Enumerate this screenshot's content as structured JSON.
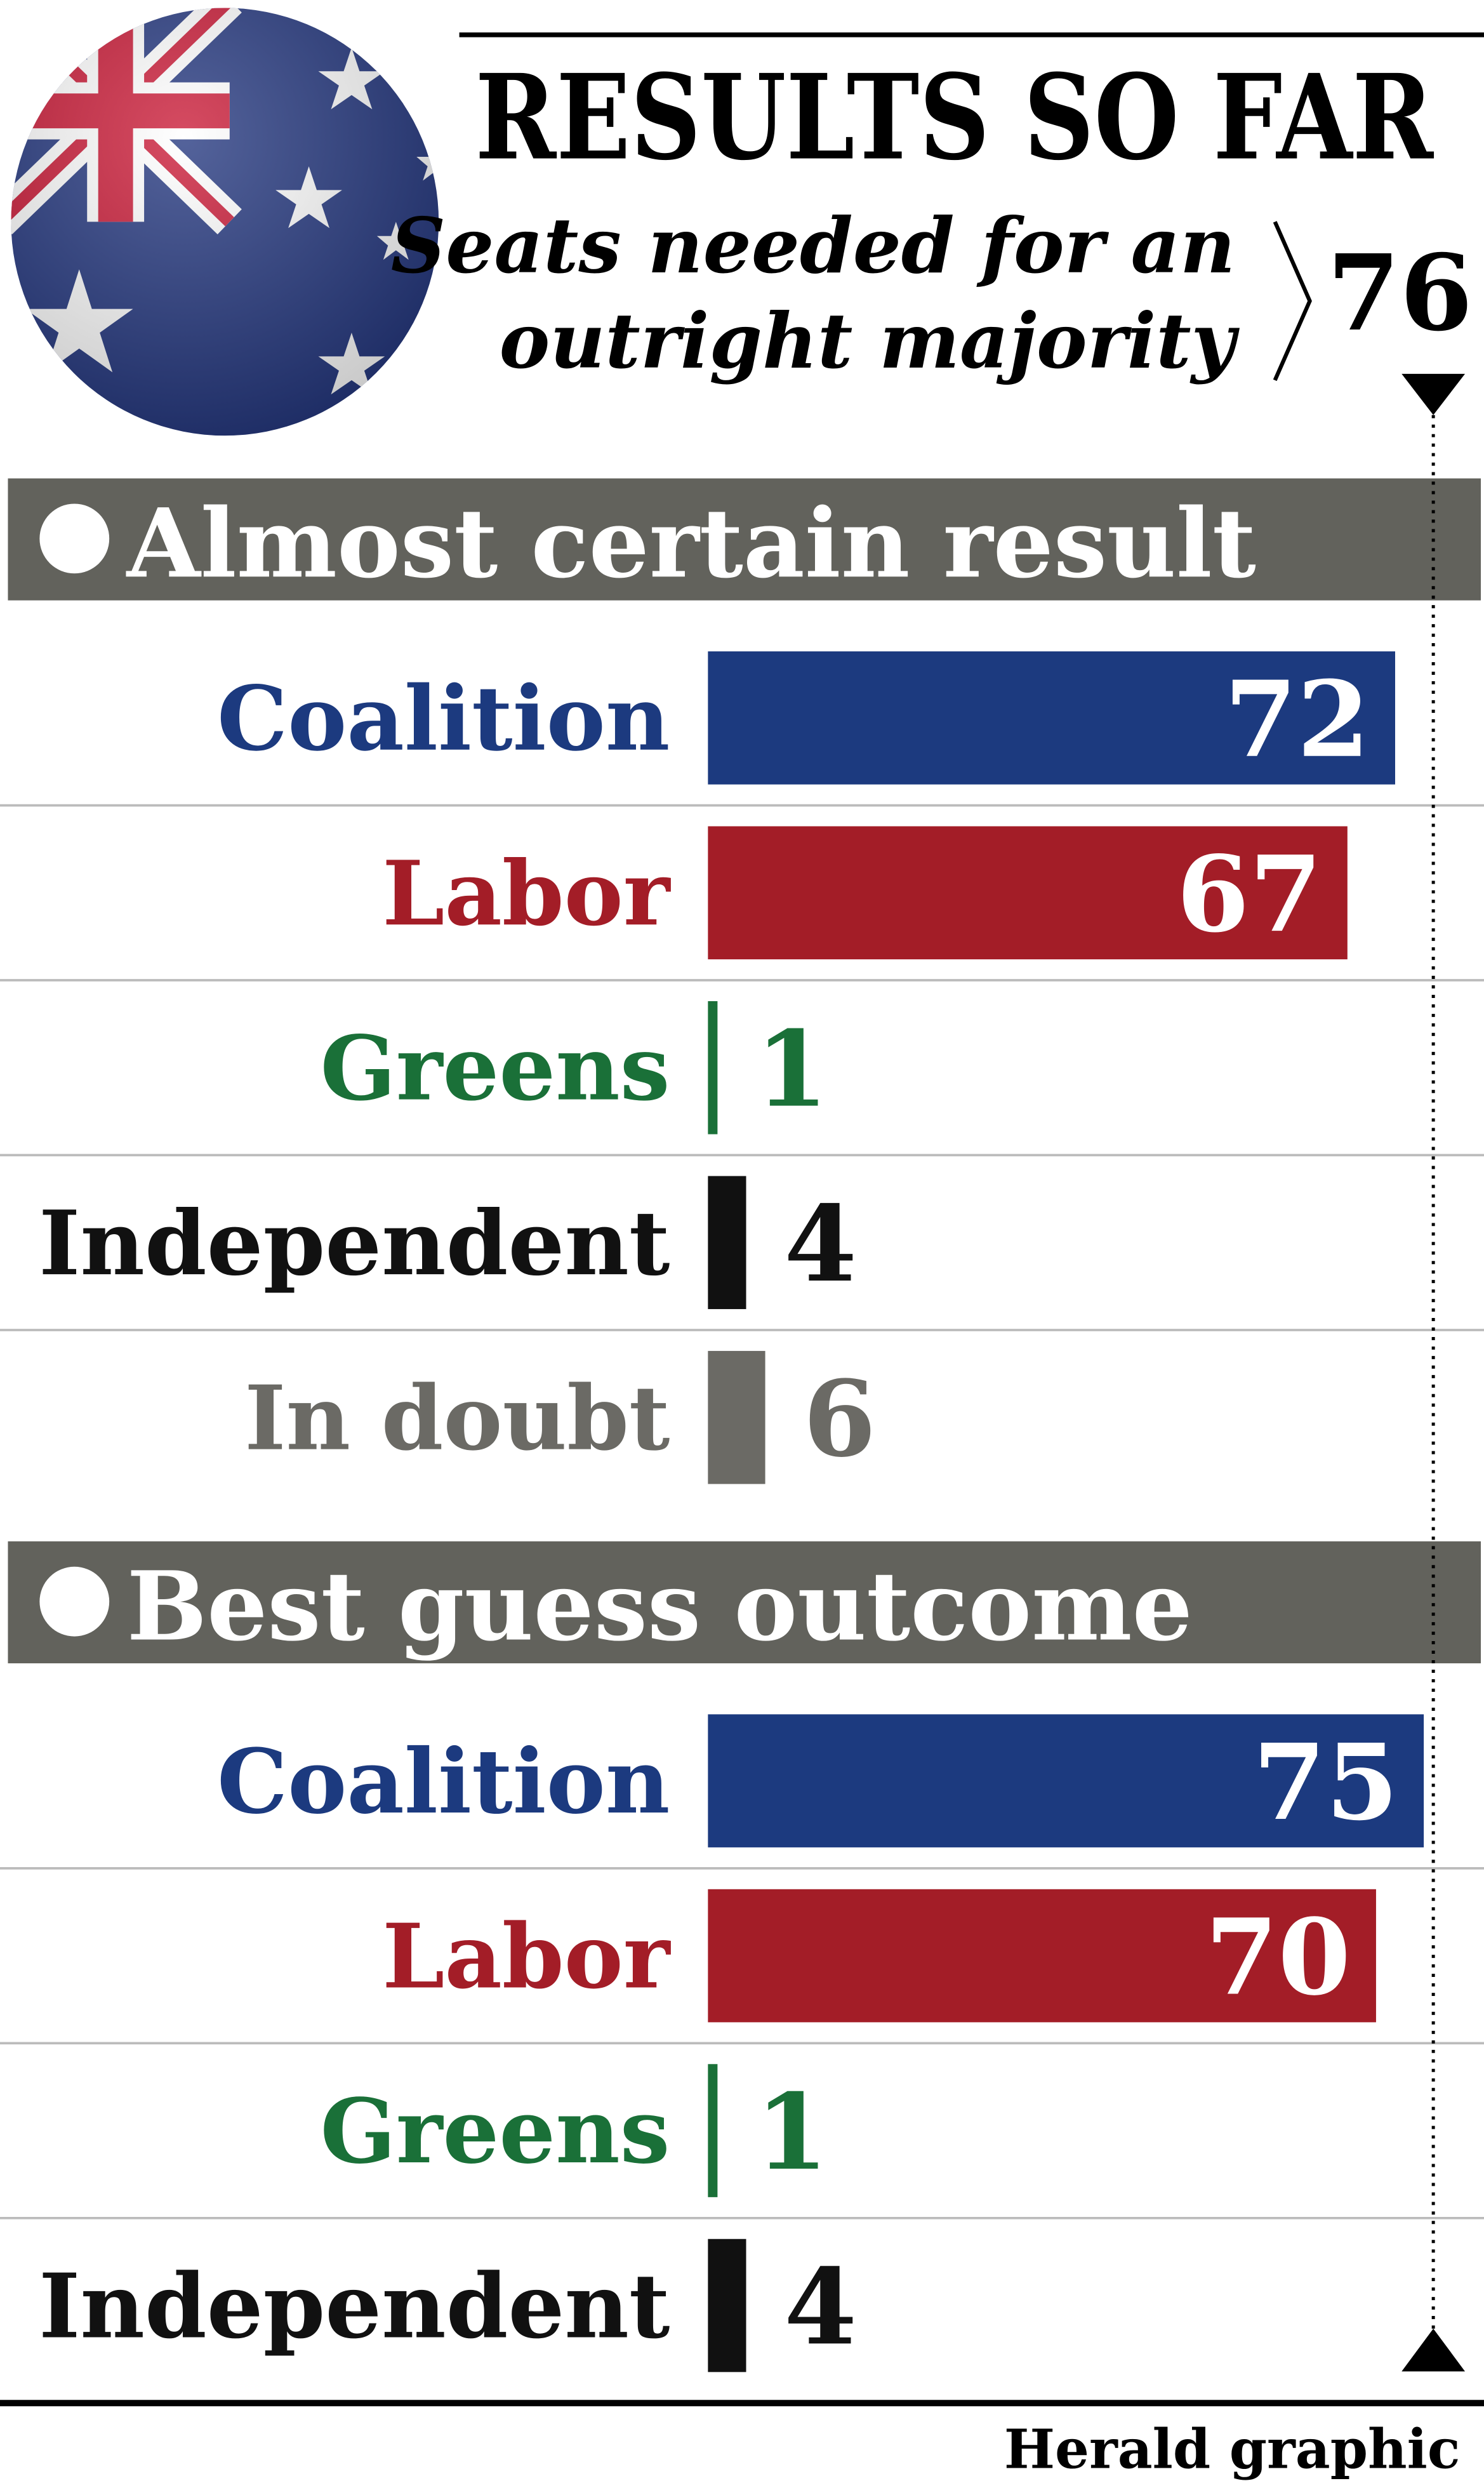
{
  "title": "RESULTS SO FAR",
  "subtitle": [
    "Seats needed for an",
    "outright majority"
  ],
  "majority": 76,
  "source": "Herald graphic",
  "chart_data": [
    {
      "type": "bar",
      "title": "Almost certain result",
      "categories": [
        "Coalition",
        "Labor",
        "Greens",
        "Independent",
        "In doubt"
      ],
      "values": [
        72,
        67,
        1,
        4,
        6
      ],
      "colors": [
        "#1c3a7f",
        "#a31d27",
        "#1a7038",
        "#111111",
        "#6b6a65"
      ],
      "xlim": [
        0,
        76
      ]
    },
    {
      "type": "bar",
      "title": "Best guess outcome",
      "categories": [
        "Coalition",
        "Labor",
        "Greens",
        "Independent"
      ],
      "values": [
        75,
        70,
        1,
        4
      ],
      "colors": [
        "#1c3a7f",
        "#a31d27",
        "#1a7038",
        "#111111"
      ],
      "xlim": [
        0,
        76
      ]
    }
  ]
}
